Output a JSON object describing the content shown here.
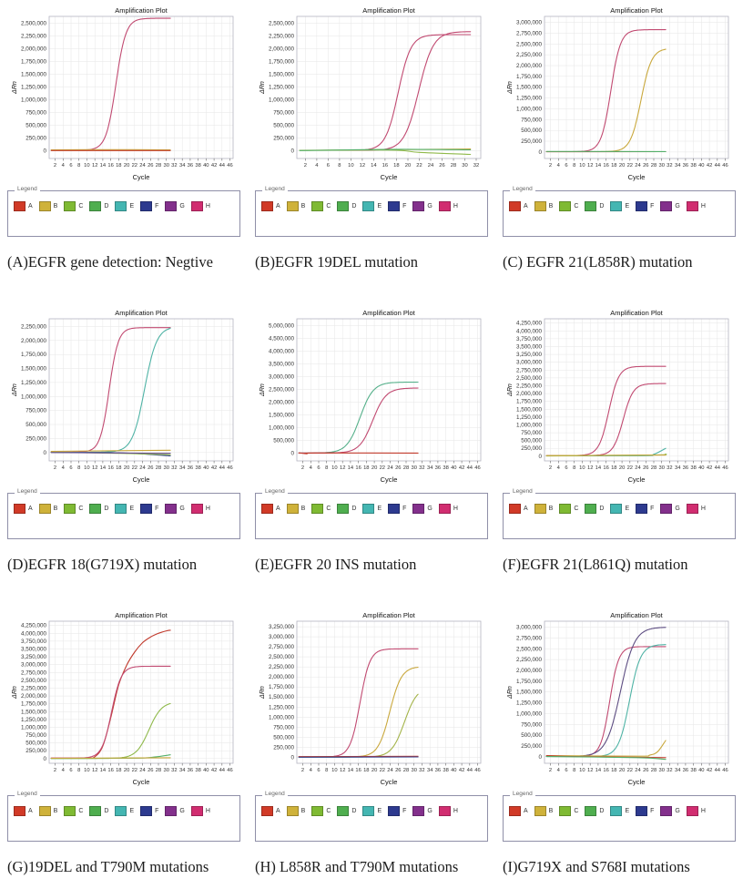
{
  "legend": {
    "label": "Legend",
    "items": [
      {
        "label": "A",
        "color": "#d13a27"
      },
      {
        "label": "B",
        "color": "#cfb23a"
      },
      {
        "label": "C",
        "color": "#7fba33"
      },
      {
        "label": "D",
        "color": "#4fae4f"
      },
      {
        "label": "E",
        "color": "#44b6b2"
      },
      {
        "label": "F",
        "color": "#2d3a8f"
      },
      {
        "label": "G",
        "color": "#83308c"
      },
      {
        "label": "H",
        "color": "#d12d70"
      }
    ]
  },
  "panels": [
    {
      "caption": "(A)EGFR gene detection: Negtive"
    },
    {
      "caption": "(B)EGFR 19DEL mutation"
    },
    {
      "caption": "(C) EGFR 21(L858R) mutation"
    },
    {
      "caption": "(D)EGFR 18(G719X) mutation"
    },
    {
      "caption": "(E)EGFR 20 INS mutation"
    },
    {
      "caption": "(F)EGFR 21(L861Q) mutation"
    },
    {
      "caption": "(G)19DEL and T790M mutations"
    },
    {
      "caption": "(H) L858R and T790M mutations"
    },
    {
      "caption": "(I)G719X and S768I mutations"
    }
  ],
  "chart_data": [
    {
      "type": "line",
      "title": "Amplification Plot",
      "xlabel": "Cycle",
      "ylabel": "ΔRn",
      "x_ticks": {
        "start": 2,
        "end": 46,
        "step": 2
      },
      "x_range": [
        0.5,
        46.8
      ],
      "y_ticks": {
        "top": 2500000,
        "step": 250000
      },
      "grid": true,
      "series": [
        {
          "name": "H",
          "color": "#c14a71",
          "kind": "sigmoid",
          "base": 12000,
          "plateau": 2600000,
          "mid": 17.3,
          "k": 0.8,
          "end": 31
        },
        {
          "name": "B",
          "color": "#c9a83c",
          "kind": "points",
          "points": [
            [
              1,
              18000
            ],
            [
              15,
              24000
            ],
            [
              31,
              20000
            ]
          ]
        },
        {
          "name": "A",
          "color": "#c23b2c",
          "kind": "points",
          "points": [
            [
              1,
              5000
            ],
            [
              31,
              5000
            ]
          ]
        }
      ]
    },
    {
      "type": "line",
      "title": "Amplification Plot",
      "xlabel": "Cycle",
      "ylabel": "ΔRn",
      "x_ticks": {
        "start": 2,
        "end": 32,
        "step": 2
      },
      "x_range": [
        0.5,
        32.8
      ],
      "y_ticks": {
        "top": 2500000,
        "step": 250000
      },
      "grid": true,
      "series": [
        {
          "name": "H",
          "color": "#c14a71",
          "kind": "sigmoid",
          "base": 10000,
          "plateau": 2280000,
          "mid": 18.3,
          "k": 0.9,
          "end": 31
        },
        {
          "name": "H",
          "color": "#c14a71",
          "kind": "sigmoid",
          "base": 10000,
          "plateau": 2340000,
          "mid": 21.9,
          "k": 0.78,
          "end": 31
        },
        {
          "name": "B",
          "color": "#c9a83c",
          "kind": "points",
          "points": [
            [
              1,
              10000
            ],
            [
              20,
              25000
            ],
            [
              31,
              35000
            ]
          ]
        },
        {
          "name": "C",
          "color": "#8fb94a",
          "kind": "points",
          "points": [
            [
              1,
              8000
            ],
            [
              17,
              15000
            ],
            [
              22,
              -30000
            ],
            [
              31,
              -70000
            ]
          ]
        },
        {
          "name": "D",
          "color": "#55b06b",
          "kind": "points",
          "points": [
            [
              1,
              5000
            ],
            [
              18,
              30000
            ],
            [
              31,
              20000
            ]
          ]
        }
      ]
    },
    {
      "type": "line",
      "title": "Amplification Plot",
      "xlabel": "Cycle",
      "ylabel": "ΔRn",
      "x_ticks": {
        "start": 2,
        "end": 46,
        "step": 2
      },
      "x_range": [
        0.5,
        46.8
      ],
      "y_ticks": {
        "top": 3000000,
        "step": 250000
      },
      "grid": true,
      "series": [
        {
          "name": "H",
          "color": "#c14a71",
          "kind": "sigmoid",
          "base": 8000,
          "plateau": 2830000,
          "mid": 17.2,
          "k": 0.82,
          "end": 31
        },
        {
          "name": "B",
          "color": "#c9a83c",
          "kind": "sigmoid",
          "base": 8000,
          "plateau": 2400000,
          "mid": 24.8,
          "k": 0.75,
          "end": 31
        },
        {
          "name": "A",
          "color": "#c23b2c",
          "kind": "points",
          "points": [
            [
              1,
              5000
            ],
            [
              31,
              8000
            ]
          ]
        },
        {
          "name": "D",
          "color": "#55b06b",
          "kind": "points",
          "points": [
            [
              1,
              12000
            ],
            [
              31,
              10000
            ]
          ]
        }
      ]
    },
    {
      "type": "line",
      "title": "Amplification Plot",
      "xlabel": "Cycle",
      "ylabel": "ΔRn",
      "x_ticks": {
        "start": 2,
        "end": 46,
        "step": 2
      },
      "x_range": [
        0.5,
        46.8
      ],
      "y_ticks": {
        "top": 2250000,
        "step": 250000
      },
      "grid": true,
      "series": [
        {
          "name": "H",
          "color": "#c14a71",
          "kind": "sigmoid",
          "base": 8000,
          "plateau": 2230000,
          "mid": 15.6,
          "k": 0.88,
          "end": 31
        },
        {
          "name": "E",
          "color": "#4fb3a5",
          "kind": "sigmoid",
          "base": 5000,
          "plateau": 2250000,
          "mid": 24.5,
          "k": 0.65,
          "end": 31
        },
        {
          "name": "B",
          "color": "#c9a83c",
          "kind": "points",
          "points": [
            [
              1,
              20000
            ],
            [
              31,
              40000
            ]
          ]
        },
        {
          "name": "F",
          "color": "#33408f",
          "kind": "points",
          "points": [
            [
              1,
              2000
            ],
            [
              18,
              -5000
            ],
            [
              31,
              -60000
            ]
          ]
        },
        {
          "name": "C",
          "color": "#8fb94a",
          "kind": "points",
          "points": [
            [
              1,
              5000
            ],
            [
              18,
              -15000
            ],
            [
              31,
              -40000
            ]
          ]
        },
        {
          "name": "G",
          "color": "#6b4f8f",
          "kind": "points",
          "points": [
            [
              1,
              0
            ],
            [
              31,
              -15000
            ]
          ]
        }
      ]
    },
    {
      "type": "line",
      "title": "Amplification Plot",
      "xlabel": "Cycle",
      "ylabel": "ΔRn",
      "x_ticks": {
        "start": 2,
        "end": 46,
        "step": 2
      },
      "x_range": [
        0.5,
        46.8
      ],
      "y_ticks": {
        "top": 5000000,
        "step": 500000
      },
      "grid": true,
      "series": [
        {
          "name": "D",
          "color": "#55b08a",
          "kind": "sigmoid",
          "base": 10000,
          "plateau": 2790000,
          "mid": 16.4,
          "k": 0.6,
          "end": 31
        },
        {
          "name": "H",
          "color": "#c14a71",
          "kind": "sigmoid",
          "base": 10000,
          "plateau": 2560000,
          "mid": 19.6,
          "k": 0.6,
          "end": 31
        },
        {
          "name": "A",
          "color": "#c23b2c",
          "kind": "points",
          "points": [
            [
              1,
              15000
            ],
            [
              3,
              -20000
            ],
            [
              5,
              10000
            ],
            [
              31,
              8000
            ]
          ]
        }
      ]
    },
    {
      "type": "line",
      "title": "Amplification Plot",
      "xlabel": "Cycle",
      "ylabel": "ΔRn",
      "x_ticks": {
        "start": 2,
        "end": 46,
        "step": 2
      },
      "x_range": [
        0.5,
        46.8
      ],
      "y_ticks": {
        "top": 4250000,
        "step": 250000
      },
      "grid": true,
      "series": [
        {
          "name": "H",
          "color": "#c14a71",
          "kind": "sigmoid",
          "base": 20000,
          "plateau": 2870000,
          "mid": 16.7,
          "k": 0.8,
          "end": 31
        },
        {
          "name": "H",
          "color": "#c14a71",
          "kind": "sigmoid",
          "base": 20000,
          "plateau": 2320000,
          "mid": 20.3,
          "k": 0.8,
          "end": 31
        },
        {
          "name": "E",
          "color": "#4fb3a5",
          "kind": "points",
          "points": [
            [
              1,
              10000
            ],
            [
              25,
              15000
            ],
            [
              28,
              60000
            ],
            [
              31,
              250000
            ]
          ]
        },
        {
          "name": "C",
          "color": "#8fb94a",
          "kind": "points",
          "points": [
            [
              1,
              8000
            ],
            [
              28,
              40000
            ],
            [
              31,
              70000
            ]
          ]
        },
        {
          "name": "B",
          "color": "#c9a83c",
          "kind": "points",
          "points": [
            [
              1,
              20000
            ],
            [
              31,
              35000
            ]
          ]
        }
      ]
    },
    {
      "type": "line",
      "title": "Amplification Plot",
      "xlabel": "Cycle",
      "ylabel": "ΔRn",
      "x_ticks": {
        "start": 2,
        "end": 46,
        "step": 2
      },
      "x_range": [
        0.5,
        46.8
      ],
      "y_ticks": {
        "top": 4250000,
        "step": 250000
      },
      "grid": true,
      "series": [
        {
          "name": "A",
          "color": "#c0392b",
          "kind": "points",
          "points": [
            [
              1,
              15000
            ],
            [
              10,
              18000
            ],
            [
              12,
              60000
            ],
            [
              14,
              400000
            ],
            [
              16,
              1300000
            ],
            [
              18,
              2350000
            ],
            [
              20,
              2980000
            ],
            [
              22,
              3400000
            ],
            [
              24,
              3700000
            ],
            [
              26,
              3880000
            ],
            [
              28,
              4000000
            ],
            [
              30,
              4080000
            ],
            [
              31,
              4100000
            ]
          ]
        },
        {
          "name": "H",
          "color": "#c14a71",
          "kind": "sigmoid",
          "base": 15000,
          "plateau": 2950000,
          "mid": 16.2,
          "k": 0.82,
          "end": 31
        },
        {
          "name": "C",
          "color": "#8fb94a",
          "kind": "sigmoid",
          "base": 5000,
          "plateau": 1820000,
          "mid": 25.6,
          "k": 0.62,
          "end": 31
        },
        {
          "name": "D",
          "color": "#55b06b",
          "kind": "points",
          "points": [
            [
              1,
              5000
            ],
            [
              22,
              15000
            ],
            [
              27,
              50000
            ],
            [
              31,
              120000
            ]
          ]
        },
        {
          "name": "B",
          "color": "#c9a83c",
          "kind": "points",
          "points": [
            [
              1,
              10000
            ],
            [
              31,
              28000
            ]
          ]
        }
      ]
    },
    {
      "type": "line",
      "title": "Amplification Plot",
      "xlabel": "Cycle",
      "ylabel": "ΔRn",
      "x_ticks": {
        "start": 2,
        "end": 46,
        "step": 2
      },
      "x_range": [
        0.5,
        46.8
      ],
      "y_ticks": {
        "top": 3250000,
        "step": 250000
      },
      "grid": true,
      "series": [
        {
          "name": "H",
          "color": "#c14a71",
          "kind": "sigmoid",
          "base": 10000,
          "plateau": 2700000,
          "mid": 16.4,
          "k": 0.8,
          "end": 31
        },
        {
          "name": "B",
          "color": "#c9a83c",
          "kind": "sigmoid",
          "base": 10000,
          "plateau": 2260000,
          "mid": 23.9,
          "k": 0.68,
          "end": 31
        },
        {
          "name": "C",
          "color": "#a3b348",
          "kind": "sigmoid",
          "base": 5000,
          "plateau": 1760000,
          "mid": 27.6,
          "k": 0.62,
          "end": 31
        },
        {
          "name": "A",
          "color": "#c23b2c",
          "kind": "points",
          "points": [
            [
              1,
              15000
            ],
            [
              31,
              25000
            ]
          ]
        },
        {
          "name": "F",
          "color": "#33408f",
          "kind": "points",
          "points": [
            [
              1,
              2000
            ],
            [
              31,
              8000
            ]
          ]
        }
      ]
    },
    {
      "type": "line",
      "title": "Amplification Plot",
      "xlabel": "Cycle",
      "ylabel": "ΔRn",
      "x_ticks": {
        "start": 2,
        "end": 46,
        "step": 2
      },
      "x_range": [
        0.5,
        46.8
      ],
      "y_ticks": {
        "top": 3000000,
        "step": 250000
      },
      "grid": true,
      "series": [
        {
          "name": "H",
          "color": "#c14a71",
          "kind": "sigmoid",
          "base": 10000,
          "plateau": 2550000,
          "mid": 16.9,
          "k": 0.88,
          "end": 31
        },
        {
          "name": "G",
          "color": "#5d4d82",
          "kind": "sigmoid",
          "base": 10000,
          "plateau": 3000000,
          "mid": 19.6,
          "k": 0.56,
          "end": 31
        },
        {
          "name": "E",
          "color": "#4fb3a5",
          "kind": "sigmoid",
          "base": 5000,
          "plateau": 2600000,
          "mid": 21.9,
          "k": 0.72,
          "end": 31
        },
        {
          "name": "B",
          "color": "#c9a83c",
          "kind": "points",
          "points": [
            [
              1,
              30000
            ],
            [
              24,
              15000
            ],
            [
              27,
              40000
            ],
            [
              29,
              120000
            ],
            [
              31,
              380000
            ]
          ]
        },
        {
          "name": "A",
          "color": "#c23b2c",
          "kind": "points",
          "points": [
            [
              1,
              30000
            ],
            [
              8,
              5000
            ],
            [
              31,
              -20000
            ]
          ]
        },
        {
          "name": "D",
          "color": "#55b06b",
          "kind": "points",
          "points": [
            [
              1,
              5000
            ],
            [
              24,
              -20000
            ],
            [
              31,
              -60000
            ]
          ]
        }
      ]
    }
  ]
}
